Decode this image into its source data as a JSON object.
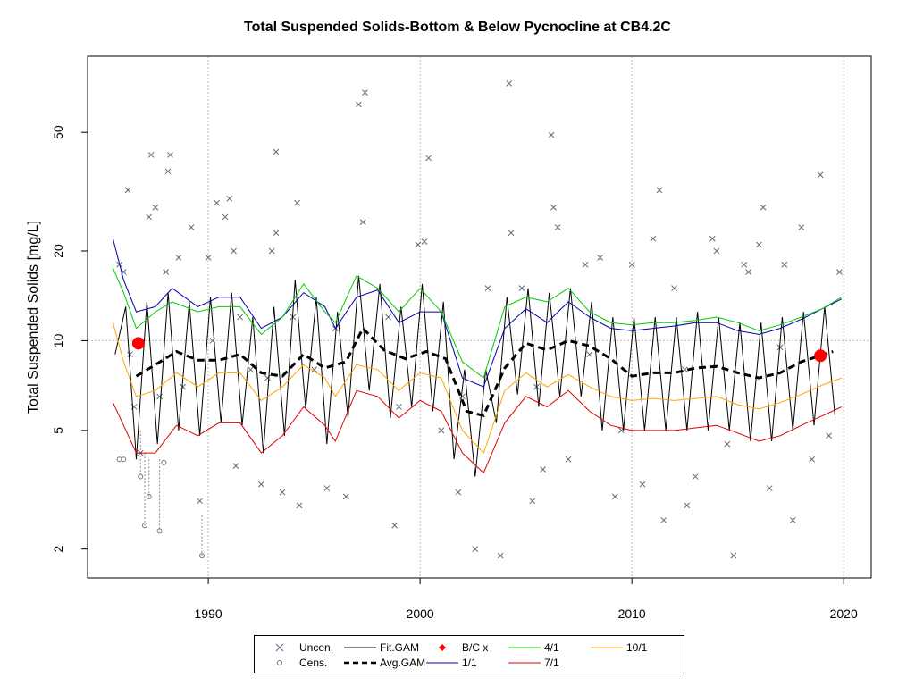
{
  "chart_data": {
    "type": "scatter",
    "title": "Total Suspended Solids-Bottom & Below Pycnocline at CB4.2C",
    "ylabel": "Total Suspended Solids [mg/L]",
    "xlabel": "",
    "y_scale": "log",
    "xlim": [
      1984.3,
      2021.3
    ],
    "ylim": [
      1.6,
      90
    ],
    "x_ticks": [
      1990,
      2000,
      2010,
      2020
    ],
    "y_ticks": [
      2,
      5,
      10,
      20,
      50
    ],
    "grid": "dotted gray at x=1990,2000,2010,2020 and y=10",
    "legend_position": "bottom-center",
    "colors": {
      "uncensored": "#5a6a80",
      "censored": "#777777",
      "fit_gam": "#000000",
      "avg_gam": "#000000",
      "bc_x": "#ff0000",
      "apr1": "#00cc00",
      "jan1": "#0000aa",
      "jul1": "#dd0000",
      "oct1": "#ffa500"
    },
    "legend": [
      {
        "label": "Uncen.",
        "symbol": "x"
      },
      {
        "label": "Cens.",
        "symbol": "circle"
      },
      {
        "label": "Fit.GAM",
        "symbol": "line"
      },
      {
        "label": "Avg.GAM",
        "symbol": "dashed"
      },
      {
        "label": "B/C x",
        "symbol": "diamond"
      },
      {
        "label": "1/1",
        "symbol": "line"
      },
      {
        "label": "4/1",
        "symbol": "line"
      },
      {
        "label": "7/1",
        "symbol": "line"
      },
      {
        "label": "10/1",
        "symbol": "line"
      }
    ],
    "bc_points": [
      {
        "x": 1986.7,
        "y": 9.8
      },
      {
        "x": 2018.9,
        "y": 8.9
      }
    ],
    "avg_gam": {
      "x": [
        1986.6,
        1987.5,
        1988.5,
        1989.5,
        1990.5,
        1991.5,
        1992.5,
        1993.5,
        1994.5,
        1995.5,
        1996.5,
        1997.3,
        1998.3,
        1999.3,
        2000.3,
        2001.2,
        2002.2,
        2003.0,
        2004.0,
        2005.0,
        2006.0,
        2007.0,
        2008.0,
        2009.0,
        2010.0,
        2011.0,
        2012.0,
        2013.0,
        2014.0,
        2015.0,
        2016.0,
        2017.0,
        2018.0,
        2019.5
      ],
      "y": [
        7.6,
        8.3,
        9.2,
        8.6,
        8.6,
        9.0,
        7.8,
        7.6,
        9.0,
        8.1,
        8.5,
        11.0,
        9.3,
        8.7,
        9.2,
        8.7,
        5.8,
        5.6,
        8.1,
        9.8,
        9.3,
        10.0,
        9.6,
        8.7,
        7.6,
        7.8,
        7.8,
        8.1,
        8.2,
        7.8,
        7.5,
        7.8,
        8.5,
        9.2
      ]
    },
    "seasonal_fits": [
      {
        "name": "1/1",
        "x": [
          1985.5,
          1986.0,
          1986.6,
          1987.5,
          1988.3,
          1989.5,
          1990.5,
          1991.5,
          1992.5,
          1993.5,
          1994.5,
          1995.5,
          1996.0,
          1997.0,
          1998.0,
          1999.0,
          2000.0,
          2001.0,
          2002.0,
          2003.0,
          2004.0,
          2005.0,
          2006.0,
          2007.0,
          2008.0,
          2009.0,
          2010.0,
          2011.0,
          2012.0,
          2013.0,
          2014.0,
          2015.0,
          2016.0,
          2017.0,
          2018.0,
          2019.0,
          2019.9
        ],
        "y": [
          22.0,
          16.0,
          12.5,
          13.0,
          15.0,
          13.0,
          14.0,
          14.0,
          11.0,
          12.0,
          14.5,
          13.0,
          11.0,
          14.0,
          14.8,
          11.5,
          12.5,
          12.5,
          7.5,
          7.0,
          11.0,
          12.8,
          11.5,
          13.5,
          12.0,
          11.0,
          10.8,
          11.0,
          11.2,
          11.5,
          11.5,
          10.8,
          10.5,
          11.0,
          11.8,
          12.8,
          13.8
        ]
      },
      {
        "name": "4/1",
        "x": [
          1985.5,
          1986.0,
          1986.6,
          1987.5,
          1988.3,
          1989.5,
          1990.5,
          1991.5,
          1992.5,
          1993.5,
          1994.5,
          1995.5,
          1996.0,
          1997.0,
          1998.0,
          1999.0,
          2000.0,
          2001.0,
          2002.0,
          2003.0,
          2004.0,
          2005.0,
          2006.0,
          2007.0,
          2008.0,
          2009.0,
          2010.0,
          2011.0,
          2012.0,
          2013.0,
          2014.0,
          2015.0,
          2016.0,
          2017.0,
          2018.0,
          2019.0,
          2019.9
        ],
        "y": [
          17.5,
          14.5,
          11.0,
          12.5,
          13.5,
          12.5,
          13.0,
          13.0,
          10.5,
          12.0,
          15.5,
          12.5,
          11.5,
          16.5,
          15.0,
          12.5,
          15.0,
          12.5,
          8.5,
          7.5,
          13.0,
          14.0,
          13.5,
          15.0,
          12.5,
          11.5,
          11.3,
          11.5,
          11.5,
          11.7,
          12.0,
          11.5,
          10.8,
          11.3,
          12.0,
          12.8,
          14.0
        ]
      },
      {
        "name": "7/1",
        "x": [
          1985.5,
          1986.0,
          1986.6,
          1987.5,
          1988.5,
          1989.5,
          1990.5,
          1991.5,
          1992.5,
          1993.5,
          1994.5,
          1995.5,
          1996.0,
          1997.0,
          1998.0,
          1999.0,
          2000.0,
          2001.0,
          2002.0,
          2003.0,
          2004.0,
          2005.0,
          2006.0,
          2007.0,
          2008.0,
          2009.0,
          2010.0,
          2011.0,
          2012.0,
          2013.0,
          2014.0,
          2015.0,
          2016.0,
          2017.0,
          2018.0,
          2019.0,
          2019.9
        ],
        "y": [
          6.2,
          5.2,
          4.2,
          4.2,
          5.2,
          4.8,
          5.3,
          5.3,
          4.2,
          4.8,
          6.0,
          5.2,
          4.6,
          6.8,
          6.5,
          5.5,
          6.3,
          5.8,
          4.2,
          3.6,
          5.3,
          6.5,
          6.0,
          6.8,
          5.8,
          5.2,
          5.0,
          5.0,
          5.0,
          5.1,
          5.2,
          4.9,
          4.6,
          4.8,
          5.2,
          5.6,
          6.0
        ]
      },
      {
        "name": "10/1",
        "x": [
          1985.5,
          1986.0,
          1986.6,
          1987.5,
          1988.5,
          1989.5,
          1990.5,
          1991.5,
          1992.5,
          1993.5,
          1994.5,
          1995.5,
          1996.0,
          1997.0,
          1998.0,
          1999.0,
          2000.0,
          2001.0,
          2002.0,
          2003.0,
          2004.0,
          2005.0,
          2006.0,
          2007.0,
          2008.0,
          2009.0,
          2010.0,
          2011.0,
          2012.0,
          2013.0,
          2014.0,
          2015.0,
          2016.0,
          2017.0,
          2018.0,
          2019.0,
          2019.9
        ],
        "y": [
          11.5,
          8.5,
          6.5,
          6.8,
          7.8,
          7.0,
          7.8,
          7.8,
          6.3,
          7.0,
          8.3,
          7.5,
          6.5,
          8.3,
          8.0,
          6.8,
          7.8,
          7.5,
          5.0,
          4.2,
          6.8,
          7.8,
          7.0,
          7.7,
          7.0,
          6.5,
          6.3,
          6.4,
          6.3,
          6.4,
          6.5,
          6.1,
          5.9,
          6.2,
          6.6,
          7.1,
          7.5
        ]
      }
    ],
    "fit_gam_series": {
      "x": [
        1985.6,
        1986.1,
        1986.6,
        1987.1,
        1987.6,
        1988.1,
        1988.6,
        1989.1,
        1989.6,
        1990.1,
        1990.6,
        1991.1,
        1991.6,
        1992.1,
        1992.6,
        1993.1,
        1993.6,
        1994.1,
        1994.6,
        1995.1,
        1995.6,
        1996.1,
        1996.6,
        1997.1,
        1997.6,
        1998.1,
        1998.6,
        1999.1,
        1999.6,
        2000.1,
        2000.6,
        2001.1,
        2001.6,
        2002.1,
        2002.6,
        2003.1,
        2003.6,
        2004.1,
        2004.6,
        2005.1,
        2005.6,
        2006.1,
        2006.6,
        2007.1,
        2007.6,
        2008.1,
        2008.6,
        2009.1,
        2009.6,
        2010.1,
        2010.6,
        2011.1,
        2011.6,
        2012.1,
        2012.6,
        2013.1,
        2013.6,
        2014.1,
        2014.6,
        2015.1,
        2015.6,
        2016.1,
        2016.6,
        2017.1,
        2017.6,
        2018.1,
        2018.6,
        2019.1,
        2019.6
      ],
      "y": [
        9.0,
        13.0,
        4.0,
        13.5,
        4.5,
        14.5,
        5.0,
        13.5,
        4.8,
        14.0,
        5.3,
        14.5,
        5.2,
        12.0,
        4.2,
        13.0,
        4.8,
        16.0,
        5.9,
        14.0,
        4.5,
        12.5,
        5.5,
        16.5,
        6.8,
        15.5,
        5.5,
        13.0,
        6.0,
        15.5,
        5.8,
        13.5,
        4.0,
        8.0,
        3.5,
        8.0,
        5.3,
        14.0,
        6.6,
        15.0,
        6.0,
        14.5,
        6.5,
        15.0,
        6.5,
        13.5,
        5.0,
        12.0,
        5.0,
        12.0,
        5.0,
        12.0,
        5.0,
        12.0,
        5.0,
        12.5,
        5.0,
        12.0,
        5.0,
        11.5,
        4.6,
        11.5,
        4.6,
        12.0,
        5.0,
        12.5,
        5.2,
        13.0,
        5.5
      ]
    },
    "uncensored_points": [
      {
        "x": 1985.8,
        "y": 18.0
      },
      {
        "x": 1986.0,
        "y": 17.0
      },
      {
        "x": 1986.2,
        "y": 32.0
      },
      {
        "x": 1986.3,
        "y": 9.0
      },
      {
        "x": 1986.5,
        "y": 6.0
      },
      {
        "x": 1986.8,
        "y": 4.2
      },
      {
        "x": 1987.2,
        "y": 26.0
      },
      {
        "x": 1987.3,
        "y": 42.0
      },
      {
        "x": 1987.5,
        "y": 28.0
      },
      {
        "x": 1987.7,
        "y": 6.5
      },
      {
        "x": 1988.0,
        "y": 17.0
      },
      {
        "x": 1988.2,
        "y": 42.0
      },
      {
        "x": 1988.1,
        "y": 37.0
      },
      {
        "x": 1988.6,
        "y": 19.0
      },
      {
        "x": 1989.2,
        "y": 24.0
      },
      {
        "x": 1989.6,
        "y": 2.9
      },
      {
        "x": 1990.0,
        "y": 19.0
      },
      {
        "x": 1990.4,
        "y": 29.0
      },
      {
        "x": 1990.8,
        "y": 26.0
      },
      {
        "x": 1991.0,
        "y": 30.0
      },
      {
        "x": 1991.2,
        "y": 20.0
      },
      {
        "x": 1991.5,
        "y": 12.0
      },
      {
        "x": 1991.3,
        "y": 3.8
      },
      {
        "x": 1992.0,
        "y": 8.0
      },
      {
        "x": 1992.5,
        "y": 3.3
      },
      {
        "x": 1993.2,
        "y": 43.0
      },
      {
        "x": 1993.2,
        "y": 23.0
      },
      {
        "x": 1993.0,
        "y": 20.0
      },
      {
        "x": 1993.5,
        "y": 3.1
      },
      {
        "x": 1994.2,
        "y": 29.0
      },
      {
        "x": 1994.0,
        "y": 12.0
      },
      {
        "x": 1994.3,
        "y": 2.8
      },
      {
        "x": 1995.0,
        "y": 8.0
      },
      {
        "x": 1995.6,
        "y": 3.2
      },
      {
        "x": 1996.5,
        "y": 3.0
      },
      {
        "x": 1997.1,
        "y": 62.0
      },
      {
        "x": 1997.4,
        "y": 68.0
      },
      {
        "x": 1997.3,
        "y": 25.0
      },
      {
        "x": 1998.5,
        "y": 12.0
      },
      {
        "x": 1998.8,
        "y": 2.4
      },
      {
        "x": 1999.9,
        "y": 21.0
      },
      {
        "x": 2000.2,
        "y": 21.5
      },
      {
        "x": 2000.4,
        "y": 41.0
      },
      {
        "x": 2001.0,
        "y": 5.0
      },
      {
        "x": 2001.8,
        "y": 3.1
      },
      {
        "x": 2002.6,
        "y": 2.0
      },
      {
        "x": 2003.2,
        "y": 15.0
      },
      {
        "x": 2003.8,
        "y": 1.9
      },
      {
        "x": 2004.2,
        "y": 73.0
      },
      {
        "x": 2004.3,
        "y": 23.0
      },
      {
        "x": 2004.8,
        "y": 15.0
      },
      {
        "x": 2005.3,
        "y": 2.9
      },
      {
        "x": 2005.8,
        "y": 3.7
      },
      {
        "x": 2006.2,
        "y": 49.0
      },
      {
        "x": 2006.3,
        "y": 28.0
      },
      {
        "x": 2006.5,
        "y": 24.0
      },
      {
        "x": 2007.0,
        "y": 4.0
      },
      {
        "x": 2007.8,
        "y": 18.0
      },
      {
        "x": 2008.5,
        "y": 19.0
      },
      {
        "x": 2009.2,
        "y": 3.0
      },
      {
        "x": 2009.5,
        "y": 5.0
      },
      {
        "x": 2010.0,
        "y": 18.0
      },
      {
        "x": 2010.5,
        "y": 3.3
      },
      {
        "x": 2011.0,
        "y": 22.0
      },
      {
        "x": 2011.3,
        "y": 32.0
      },
      {
        "x": 2011.5,
        "y": 2.5
      },
      {
        "x": 2012.0,
        "y": 15.0
      },
      {
        "x": 2012.6,
        "y": 2.8
      },
      {
        "x": 2013.0,
        "y": 3.5
      },
      {
        "x": 2013.8,
        "y": 22.0
      },
      {
        "x": 2014.0,
        "y": 20.0
      },
      {
        "x": 2014.5,
        "y": 4.5
      },
      {
        "x": 2014.8,
        "y": 1.9
      },
      {
        "x": 2015.3,
        "y": 18.0
      },
      {
        "x": 2015.5,
        "y": 17.0
      },
      {
        "x": 2016.0,
        "y": 21.0
      },
      {
        "x": 2016.2,
        "y": 28.0
      },
      {
        "x": 2016.5,
        "y": 3.2
      },
      {
        "x": 2017.2,
        "y": 18.0
      },
      {
        "x": 2017.6,
        "y": 2.5
      },
      {
        "x": 2018.0,
        "y": 24.0
      },
      {
        "x": 2018.5,
        "y": 4.0
      },
      {
        "x": 2018.9,
        "y": 36.0
      },
      {
        "x": 2019.3,
        "y": 4.8
      },
      {
        "x": 2019.8,
        "y": 17.0
      },
      {
        "x": 1988.8,
        "y": 7.0
      },
      {
        "x": 1990.2,
        "y": 10.0
      },
      {
        "x": 1992.8,
        "y": 7.5
      },
      {
        "x": 1996.0,
        "y": 11.0
      },
      {
        "x": 1999.0,
        "y": 6.0
      },
      {
        "x": 2002.0,
        "y": 6.5
      },
      {
        "x": 2005.5,
        "y": 7.0
      },
      {
        "x": 2008.0,
        "y": 9.0
      },
      {
        "x": 2012.5,
        "y": 8.0
      },
      {
        "x": 2017.0,
        "y": 9.5
      }
    ],
    "censored_points": [
      {
        "x": 1985.8,
        "y": 4.0,
        "upper": 4.0
      },
      {
        "x": 1986.0,
        "y": 4.0,
        "upper": 4.0
      },
      {
        "x": 1986.8,
        "y": 3.5,
        "upper": 5.0
      },
      {
        "x": 1987.0,
        "y": 2.4,
        "upper": 4.2
      },
      {
        "x": 1987.2,
        "y": 3.0,
        "upper": 4.0
      },
      {
        "x": 1987.7,
        "y": 2.3,
        "upper": 4.0
      },
      {
        "x": 1987.9,
        "y": 3.9,
        "upper": 3.9
      },
      {
        "x": 1989.7,
        "y": 1.9,
        "upper": 2.6
      }
    ]
  },
  "legend_items": {
    "uncen": "Uncen.",
    "cens": "Cens.",
    "fit_gam": "Fit.GAM",
    "avg_gam": "Avg.GAM",
    "bc_x": "B/C x",
    "s_1_1": "1/1",
    "s_4_1": "4/1",
    "s_7_1": "7/1",
    "s_10_1": "10/1"
  }
}
